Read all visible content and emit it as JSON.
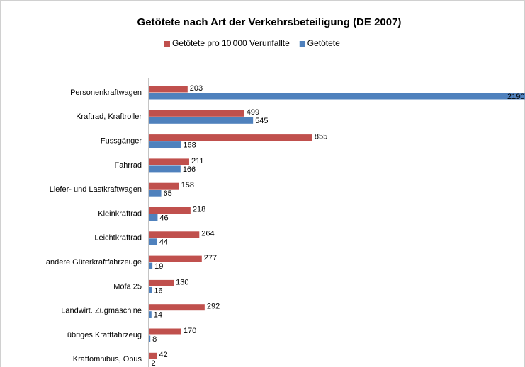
{
  "chart_data": {
    "type": "bar",
    "orientation": "horizontal",
    "title": "Getötete nach Art der Verkehrsbeteiligung (DE 2007)",
    "categories": [
      "Personenkraftwagen",
      "Kraftrad, Kraftroller",
      "Fussgänger",
      "Fahrrad",
      "Liefer- und Lastkraftwagen",
      "Kleinkraftrad",
      "Leichtkraftrad",
      "andere Güterkraftfahrzeuge",
      "Mofa 25",
      "Landwirt. Zugmaschine",
      "übriges Kraftfahrzeug",
      "Kraftomnibus, Obus"
    ],
    "series": [
      {
        "name": "Getötete pro 10'000 Verunfallte",
        "color": "#c0504d",
        "values": [
          203,
          499,
          855,
          211,
          158,
          218,
          264,
          277,
          130,
          292,
          170,
          42
        ]
      },
      {
        "name": "Getötete",
        "color": "#4f81bd",
        "values": [
          2190,
          545,
          168,
          166,
          65,
          46,
          44,
          19,
          16,
          14,
          8,
          2
        ]
      }
    ],
    "legend": "top"
  }
}
